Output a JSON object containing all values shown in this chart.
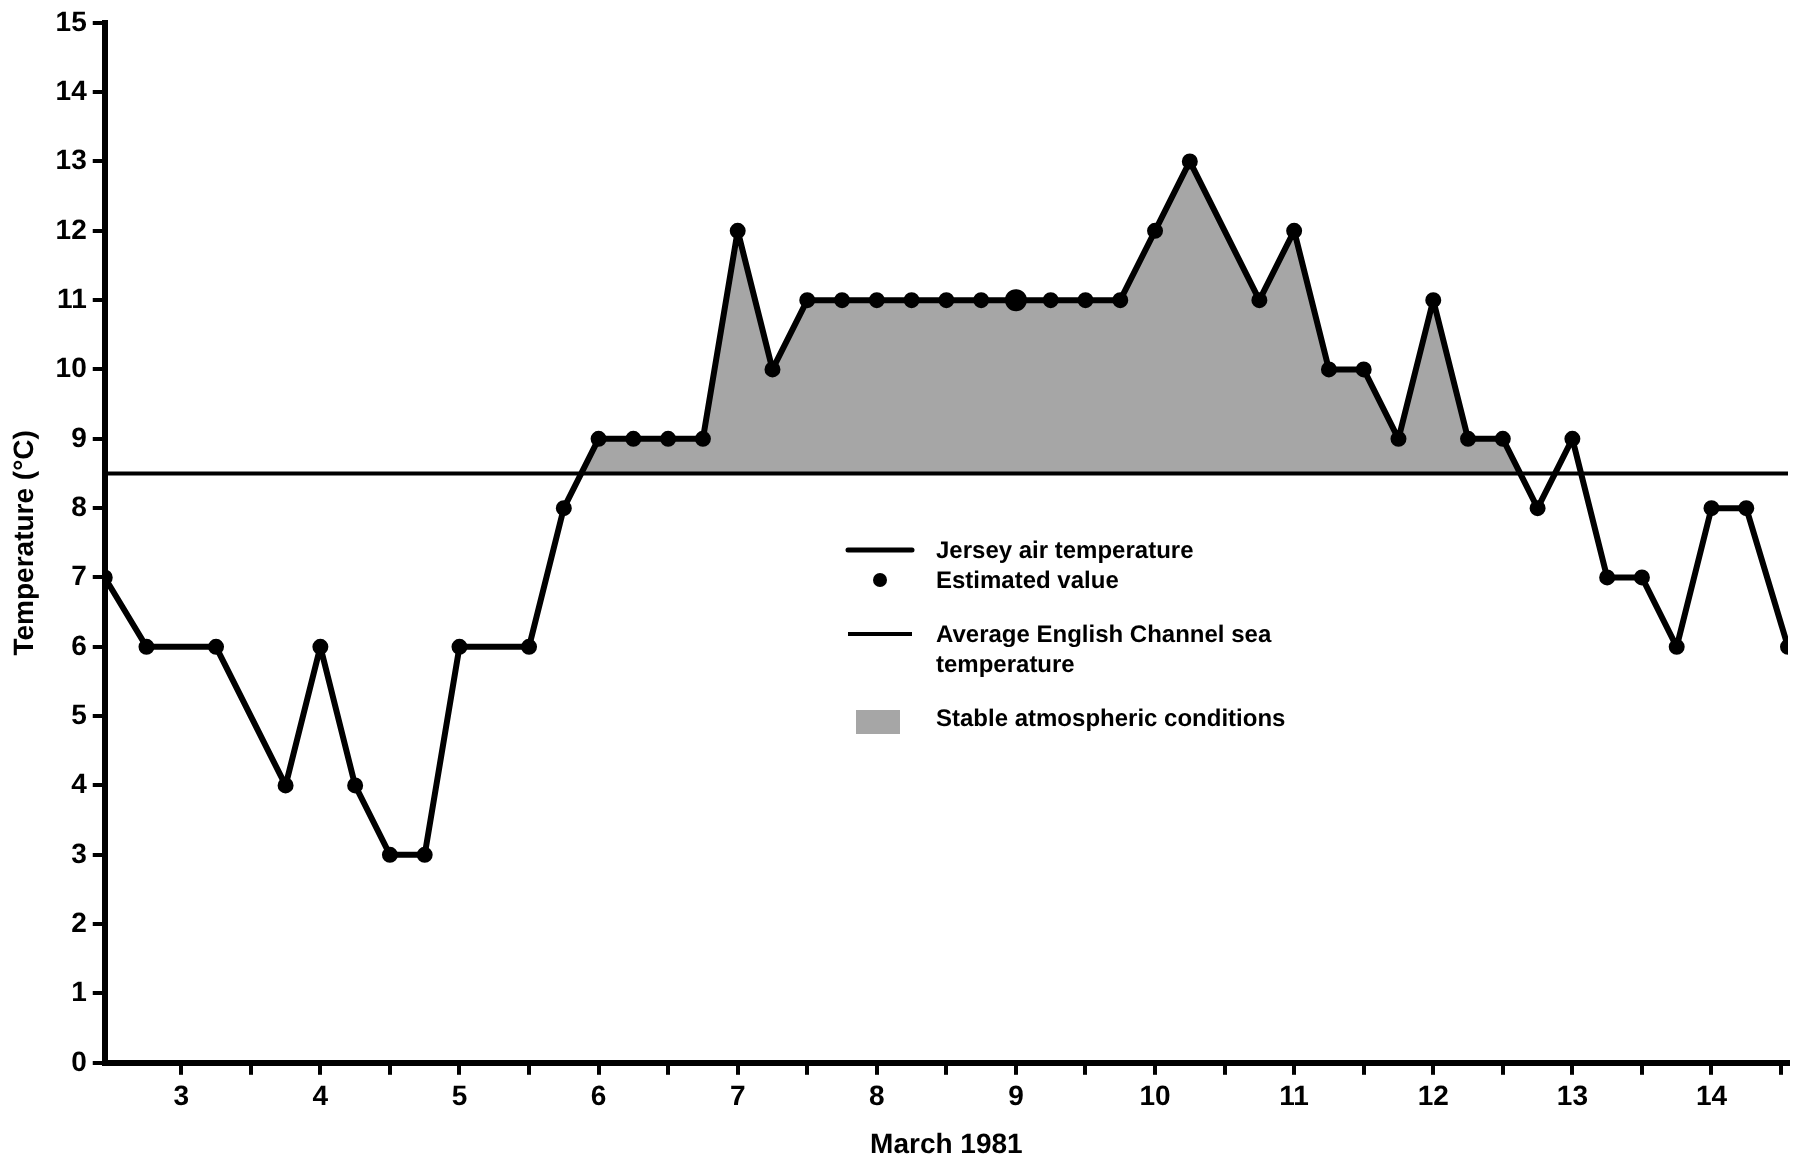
{
  "chart_data": {
    "type": "line",
    "xlabel": "March 1981",
    "ylabel": "Temperature (°C)",
    "xlim": [
      2.45,
      14.55
    ],
    "xticks": [
      3,
      {
        "value": 3.5,
        "label": null
      },
      4,
      {
        "value": 4.5,
        "label": null
      },
      5,
      {
        "value": 5.5,
        "label": null
      },
      6,
      {
        "value": 6.5,
        "label": null
      },
      7,
      {
        "value": 7.5,
        "label": null
      },
      8,
      {
        "value": 8.5,
        "label": null
      },
      9,
      {
        "value": 9.5,
        "label": null
      },
      10,
      {
        "value": 10.5,
        "label": null
      },
      11,
      {
        "value": 11.5,
        "label": null
      },
      12,
      {
        "value": 12.5,
        "label": null
      },
      13,
      {
        "value": 13.5,
        "label": null
      },
      14,
      {
        "value": 14.5,
        "label": null
      }
    ],
    "ylim": [
      0,
      15
    ],
    "yticks": [
      0,
      1,
      2,
      3,
      4,
      5,
      6,
      7,
      8,
      9,
      10,
      11,
      12,
      13,
      14,
      15
    ],
    "grid": false,
    "legend": "right",
    "line_style": "solid",
    "series": [
      {
        "name": "Jersey air temperature",
        "marker": "circle",
        "color": "#000000",
        "x": [
          2.45,
          2.75,
          3.25,
          3.75,
          4,
          4.25,
          4.5,
          4.75,
          5,
          5.5,
          5.75,
          6,
          6.25,
          6.5,
          6.75,
          7,
          7.25,
          7.5,
          7.75,
          8,
          8.25,
          8.5,
          8.75,
          9,
          9.25,
          9.5,
          9.75,
          10,
          10.25,
          10.75,
          11,
          11.25,
          11.5,
          11.75,
          12,
          12.25,
          12.5,
          12.75,
          13,
          13.25,
          13.5,
          13.75,
          14,
          14.25,
          14.55
        ],
        "values": [
          7,
          6,
          6,
          4,
          6,
          4,
          3,
          3,
          6,
          6,
          8,
          9,
          9,
          9,
          9,
          12,
          10,
          11,
          11,
          11,
          11,
          11,
          11,
          11,
          11,
          11,
          11,
          12,
          13,
          11,
          12,
          10,
          10,
          9,
          11,
          9,
          9,
          8,
          9,
          7,
          7,
          6,
          8,
          8,
          6
        ]
      },
      {
        "name": "Estimated value",
        "type": "scatter",
        "marker": "circle",
        "color": "#000000",
        "x": [
          9
        ],
        "values": [
          11
        ]
      },
      {
        "name": "Stable atmospheric conditions",
        "type": "area",
        "color": "#a6a6a6",
        "x": [
          5.875,
          6,
          6.25,
          6.5,
          6.75,
          7,
          7.25,
          7.5,
          7.75,
          8,
          8.25,
          8.5,
          8.75,
          9,
          9.25,
          9.5,
          9.75,
          10,
          10.25,
          10.75,
          11,
          11.25,
          11.5,
          11.75,
          12,
          12.25,
          12.5,
          12.625
        ],
        "values": [
          8.5,
          9,
          9,
          9,
          9,
          12,
          10,
          11,
          11,
          11,
          11,
          11,
          11,
          11,
          11,
          11,
          11,
          12,
          13,
          11,
          12,
          10,
          10,
          9,
          11,
          9,
          9,
          8.5
        ]
      }
    ],
    "ref_lines": [
      {
        "axis": "y",
        "value": 8.5,
        "label": "Average English Channel sea temperature",
        "color": "#000000"
      }
    ]
  }
}
